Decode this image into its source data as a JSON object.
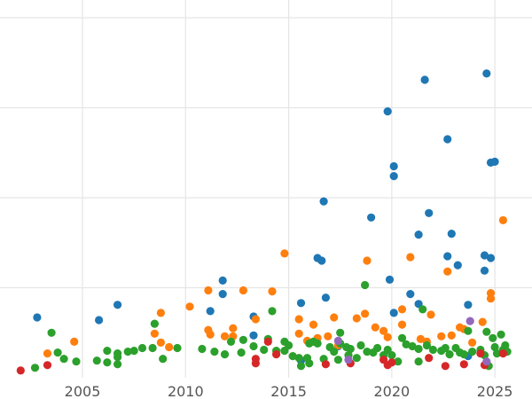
{
  "chart_data": {
    "type": "scatter",
    "title": "",
    "xlabel": "",
    "ylabel": "",
    "xlim": [
      2001,
      2026.8
    ],
    "ylim": [
      0,
      40
    ],
    "y_gridlines": [
      10,
      20,
      30,
      40
    ],
    "x_ticks": [
      2005,
      2010,
      2015,
      2020,
      2025
    ],
    "x_tick_labels": [
      "2005",
      "2010",
      "2015",
      "2020",
      "2025"
    ],
    "y_tick_labels_visible": false,
    "grid": true,
    "colors": {
      "blue": "#1f77b4",
      "orange": "#ff7f0e",
      "green": "#2ca02c",
      "red": "#d62728",
      "purple": "#9467bd"
    },
    "series": [
      {
        "color_key": "blue",
        "points": [
          [
            2002.8,
            6.7
          ],
          [
            2005.8,
            6.4
          ],
          [
            2006.7,
            8.1
          ],
          [
            2011.2,
            7.4
          ],
          [
            2011.8,
            9.3
          ],
          [
            2011.8,
            10.8
          ],
          [
            2013.3,
            6.8
          ],
          [
            2013.3,
            4.7
          ],
          [
            2015.6,
            1.9
          ],
          [
            2015.6,
            8.3
          ],
          [
            2016.4,
            13.3
          ],
          [
            2016.6,
            13.0
          ],
          [
            2016.7,
            19.6
          ],
          [
            2016.8,
            8.9
          ],
          [
            2017.4,
            3.5
          ],
          [
            2019.0,
            17.8
          ],
          [
            2019.8,
            29.6
          ],
          [
            2019.9,
            10.9
          ],
          [
            2020.1,
            22.4
          ],
          [
            2020.1,
            23.5
          ],
          [
            2020.1,
            7.2
          ],
          [
            2020.9,
            9.3
          ],
          [
            2021.3,
            15.9
          ],
          [
            2021.3,
            8.2
          ],
          [
            2021.6,
            33.1
          ],
          [
            2021.8,
            18.3
          ],
          [
            2022.7,
            26.5
          ],
          [
            2022.7,
            13.5
          ],
          [
            2022.9,
            16.0
          ],
          [
            2023.2,
            12.5
          ],
          [
            2023.7,
            8.1
          ],
          [
            2023.7,
            2.4
          ],
          [
            2024.5,
            13.6
          ],
          [
            2024.5,
            11.9
          ],
          [
            2024.6,
            33.8
          ],
          [
            2024.8,
            23.9
          ],
          [
            2024.8,
            13.3
          ],
          [
            2025.0,
            24.0
          ]
        ]
      },
      {
        "color_key": "orange",
        "points": [
          [
            2003.3,
            2.7
          ],
          [
            2004.6,
            4.0
          ],
          [
            2008.5,
            4.9
          ],
          [
            2008.8,
            3.9
          ],
          [
            2008.8,
            7.2
          ],
          [
            2009.2,
            3.4
          ],
          [
            2010.2,
            7.9
          ],
          [
            2011.1,
            9.7
          ],
          [
            2011.1,
            5.3
          ],
          [
            2011.2,
            4.8
          ],
          [
            2011.9,
            4.6
          ],
          [
            2012.3,
            5.5
          ],
          [
            2012.3,
            4.6
          ],
          [
            2012.8,
            9.7
          ],
          [
            2013.4,
            6.5
          ],
          [
            2014.2,
            9.6
          ],
          [
            2014.8,
            13.8
          ],
          [
            2015.5,
            6.5
          ],
          [
            2015.5,
            4.9
          ],
          [
            2015.9,
            4.1
          ],
          [
            2016.2,
            5.9
          ],
          [
            2016.4,
            4.4
          ],
          [
            2016.9,
            4.6
          ],
          [
            2017.2,
            6.7
          ],
          [
            2017.4,
            3.6
          ],
          [
            2018.3,
            6.6
          ],
          [
            2018.7,
            7.1
          ],
          [
            2018.8,
            13.0
          ],
          [
            2019.2,
            5.6
          ],
          [
            2019.6,
            5.2
          ],
          [
            2019.8,
            4.5
          ],
          [
            2020.5,
            7.6
          ],
          [
            2020.5,
            5.9
          ],
          [
            2020.9,
            13.4
          ],
          [
            2021.4,
            4.3
          ],
          [
            2021.7,
            4.0
          ],
          [
            2021.9,
            7.0
          ],
          [
            2022.4,
            4.6
          ],
          [
            2022.7,
            11.8
          ],
          [
            2022.9,
            4.7
          ],
          [
            2023.3,
            5.6
          ],
          [
            2023.5,
            5.4
          ],
          [
            2023.9,
            3.9
          ],
          [
            2024.4,
            6.2
          ],
          [
            2024.8,
            9.4
          ],
          [
            2024.8,
            8.8
          ],
          [
            2025.4,
            17.5
          ]
        ]
      },
      {
        "color_key": "green",
        "points": [
          [
            2002.7,
            1.1
          ],
          [
            2003.5,
            5.0
          ],
          [
            2003.8,
            2.8
          ],
          [
            2004.1,
            2.1
          ],
          [
            2004.7,
            1.8
          ],
          [
            2005.7,
            1.9
          ],
          [
            2006.2,
            1.7
          ],
          [
            2006.2,
            3.0
          ],
          [
            2006.7,
            1.5
          ],
          [
            2006.7,
            2.3
          ],
          [
            2006.7,
            2.7
          ],
          [
            2007.2,
            2.9
          ],
          [
            2007.5,
            3.0
          ],
          [
            2007.9,
            3.3
          ],
          [
            2008.4,
            3.3
          ],
          [
            2008.5,
            6.0
          ],
          [
            2008.9,
            2.1
          ],
          [
            2009.6,
            3.3
          ],
          [
            2010.8,
            3.2
          ],
          [
            2011.4,
            2.9
          ],
          [
            2011.9,
            2.6
          ],
          [
            2012.2,
            4.0
          ],
          [
            2012.7,
            2.8
          ],
          [
            2012.8,
            4.2
          ],
          [
            2013.3,
            3.5
          ],
          [
            2013.8,
            3.1
          ],
          [
            2014.0,
            4.3
          ],
          [
            2014.2,
            7.4
          ],
          [
            2014.4,
            3.0
          ],
          [
            2014.8,
            4.0
          ],
          [
            2014.8,
            3.0
          ],
          [
            2015.0,
            3.6
          ],
          [
            2015.2,
            2.4
          ],
          [
            2015.5,
            2.2
          ],
          [
            2015.6,
            1.3
          ],
          [
            2015.9,
            2.2
          ],
          [
            2016.0,
            3.8
          ],
          [
            2016.0,
            1.6
          ],
          [
            2016.2,
            4.0
          ],
          [
            2016.4,
            3.8
          ],
          [
            2016.7,
            2.1
          ],
          [
            2017.0,
            3.4
          ],
          [
            2017.2,
            2.9
          ],
          [
            2017.4,
            2.0
          ],
          [
            2017.5,
            3.8
          ],
          [
            2017.5,
            5.0
          ],
          [
            2017.8,
            3.4
          ],
          [
            2017.9,
            2.5
          ],
          [
            2018.0,
            3.2
          ],
          [
            2018.3,
            2.2
          ],
          [
            2018.5,
            3.6
          ],
          [
            2018.7,
            10.3
          ],
          [
            2018.8,
            2.9
          ],
          [
            2019.1,
            2.8
          ],
          [
            2019.3,
            3.3
          ],
          [
            2019.6,
            2.5
          ],
          [
            2019.8,
            3.1
          ],
          [
            2020.0,
            2.5
          ],
          [
            2020.3,
            1.8
          ],
          [
            2020.5,
            4.4
          ],
          [
            2020.7,
            3.7
          ],
          [
            2021.0,
            3.5
          ],
          [
            2021.3,
            3.2
          ],
          [
            2021.3,
            1.8
          ],
          [
            2021.5,
            7.6
          ],
          [
            2021.7,
            3.6
          ],
          [
            2022.0,
            3.1
          ],
          [
            2022.4,
            3.0
          ],
          [
            2022.6,
            3.3
          ],
          [
            2022.8,
            2.6
          ],
          [
            2023.1,
            3.3
          ],
          [
            2023.3,
            2.8
          ],
          [
            2023.5,
            2.6
          ],
          [
            2023.7,
            5.2
          ],
          [
            2023.9,
            2.9
          ],
          [
            2024.3,
            3.1
          ],
          [
            2024.5,
            2.5
          ],
          [
            2024.6,
            5.1
          ],
          [
            2024.7,
            1.3
          ],
          [
            2024.9,
            4.4
          ],
          [
            2025.0,
            3.4
          ],
          [
            2025.1,
            2.7
          ],
          [
            2025.3,
            4.8
          ],
          [
            2025.4,
            3.1
          ],
          [
            2025.5,
            3.6
          ],
          [
            2025.6,
            2.9
          ]
        ]
      },
      {
        "color_key": "red",
        "points": [
          [
            2002.0,
            0.8
          ],
          [
            2003.3,
            1.4
          ],
          [
            2013.4,
            2.1
          ],
          [
            2013.4,
            1.6
          ],
          [
            2014.0,
            4.0
          ],
          [
            2014.4,
            2.6
          ],
          [
            2016.8,
            1.5
          ],
          [
            2018.0,
            1.6
          ],
          [
            2019.6,
            2.0
          ],
          [
            2019.8,
            1.4
          ],
          [
            2020.0,
            1.7
          ],
          [
            2021.8,
            2.2
          ],
          [
            2022.6,
            1.3
          ],
          [
            2023.5,
            1.5
          ],
          [
            2024.3,
            2.7
          ],
          [
            2024.5,
            1.4
          ],
          [
            2025.4,
            2.7
          ]
        ]
      },
      {
        "color_key": "purple",
        "points": [
          [
            2017.4,
            4.1
          ],
          [
            2017.9,
            2.0
          ],
          [
            2023.8,
            6.3
          ],
          [
            2024.6,
            1.8
          ]
        ]
      }
    ]
  }
}
